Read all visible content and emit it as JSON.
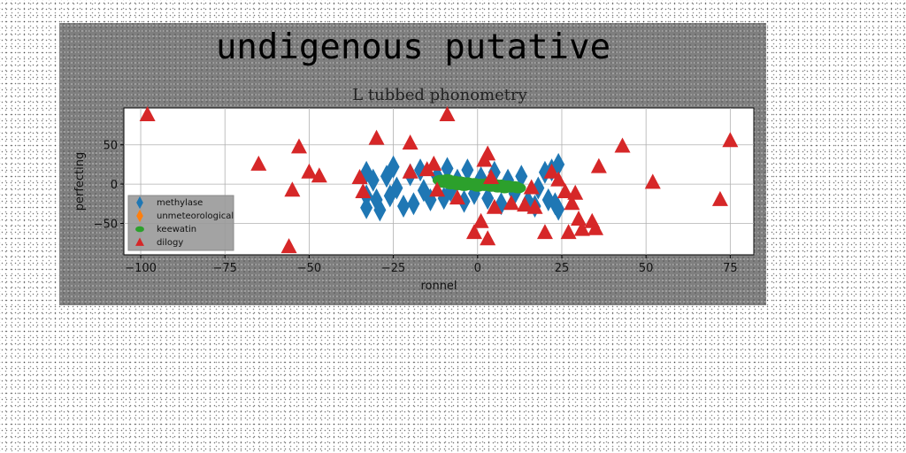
{
  "figure": {
    "suptitle": "undigenous putative",
    "background": "#7f7f7f"
  },
  "chart_data": {
    "type": "scatter",
    "title": "L tubbed phonometry",
    "xlabel": "ronnel",
    "ylabel": "perfecting",
    "xlim": [
      -105,
      82
    ],
    "ylim": [
      -90,
      97
    ],
    "xticks": [
      -100,
      -75,
      -50,
      -25,
      0,
      25,
      50,
      75
    ],
    "xtick_labels": [
      "−100",
      "−75",
      "−50",
      "−25",
      "0",
      "25",
      "50",
      "75"
    ],
    "yticks": [
      50,
      0,
      -50
    ],
    "ytick_labels": [
      "50",
      "0",
      "−50"
    ],
    "grid": true,
    "legend_position": "lower-left",
    "series": [
      {
        "name": "methylase",
        "marker": "diamond",
        "color": "#1f77b4",
        "points": [
          [
            -33,
            15
          ],
          [
            -33,
            -15
          ],
          [
            -33,
            -30
          ],
          [
            -31,
            5
          ],
          [
            -30,
            -20
          ],
          [
            -29,
            -33
          ],
          [
            -27,
            10
          ],
          [
            -26,
            -15
          ],
          [
            -25,
            22
          ],
          [
            -24,
            -5
          ],
          [
            -22,
            -28
          ],
          [
            -20,
            12
          ],
          [
            -19,
            -25
          ],
          [
            -17,
            18
          ],
          [
            -16,
            -8
          ],
          [
            -14,
            -20
          ],
          [
            -12,
            10
          ],
          [
            -10,
            -18
          ],
          [
            -9,
            20
          ],
          [
            -8,
            -8
          ],
          [
            -6,
            5
          ],
          [
            -4,
            -22
          ],
          [
            -3,
            18
          ],
          [
            -1,
            -12
          ],
          [
            1,
            8
          ],
          [
            3,
            -18
          ],
          [
            5,
            15
          ],
          [
            7,
            -25
          ],
          [
            9,
            5
          ],
          [
            11,
            -12
          ],
          [
            13,
            10
          ],
          [
            15,
            -22
          ],
          [
            17,
            -28
          ],
          [
            18,
            -5
          ],
          [
            20,
            15
          ],
          [
            21,
            -20
          ],
          [
            22,
            18
          ],
          [
            23,
            -25
          ],
          [
            24,
            -32
          ],
          [
            24,
            25
          ]
        ]
      },
      {
        "name": "unmeteorological",
        "marker": "diamond",
        "color": "#ff7f0e",
        "points": []
      },
      {
        "name": "keewatin",
        "marker": "circle",
        "color": "#2ca02c",
        "points": [
          [
            -11,
            5
          ],
          [
            -10,
            2
          ],
          [
            -9,
            6
          ],
          [
            -8,
            0
          ],
          [
            -7,
            4
          ],
          [
            -6,
            -1
          ],
          [
            -5,
            3
          ],
          [
            -4,
            -2
          ],
          [
            -3,
            2
          ],
          [
            -2,
            -1
          ],
          [
            -1,
            1
          ],
          [
            0,
            -3
          ],
          [
            1,
            0
          ],
          [
            2,
            -2
          ],
          [
            3,
            1
          ],
          [
            4,
            -3
          ],
          [
            5,
            0
          ],
          [
            6,
            -4
          ],
          [
            7,
            -1
          ],
          [
            8,
            -5
          ],
          [
            9,
            -2
          ],
          [
            10,
            -4
          ],
          [
            11,
            -3
          ],
          [
            12,
            -5
          ]
        ]
      },
      {
        "name": "dilogy",
        "marker": "triangle",
        "color": "#d62728",
        "points": [
          [
            -98,
            88
          ],
          [
            -65,
            25
          ],
          [
            -55,
            -8
          ],
          [
            -56,
            -80
          ],
          [
            -53,
            47
          ],
          [
            -50,
            15
          ],
          [
            -47,
            10
          ],
          [
            -35,
            8
          ],
          [
            -34,
            -10
          ],
          [
            -30,
            58
          ],
          [
            -20,
            52
          ],
          [
            -20,
            15
          ],
          [
            -15,
            18
          ],
          [
            -13,
            25
          ],
          [
            -12,
            -8
          ],
          [
            -9,
            88
          ],
          [
            -6,
            -18
          ],
          [
            -1,
            -62
          ],
          [
            1,
            -48
          ],
          [
            2,
            30
          ],
          [
            3,
            38
          ],
          [
            3,
            -70
          ],
          [
            4,
            8
          ],
          [
            5,
            -30
          ],
          [
            10,
            -25
          ],
          [
            14,
            -27
          ],
          [
            16,
            -5
          ],
          [
            17,
            -30
          ],
          [
            20,
            -62
          ],
          [
            22,
            15
          ],
          [
            24,
            5
          ],
          [
            26,
            -10
          ],
          [
            27,
            -62
          ],
          [
            28,
            -25
          ],
          [
            29,
            -12
          ],
          [
            30,
            -45
          ],
          [
            31,
            -58
          ],
          [
            34,
            -48
          ],
          [
            35,
            -57
          ],
          [
            36,
            22
          ],
          [
            43,
            48
          ],
          [
            52,
            2
          ],
          [
            72,
            -20
          ],
          [
            75,
            55
          ]
        ]
      }
    ]
  }
}
